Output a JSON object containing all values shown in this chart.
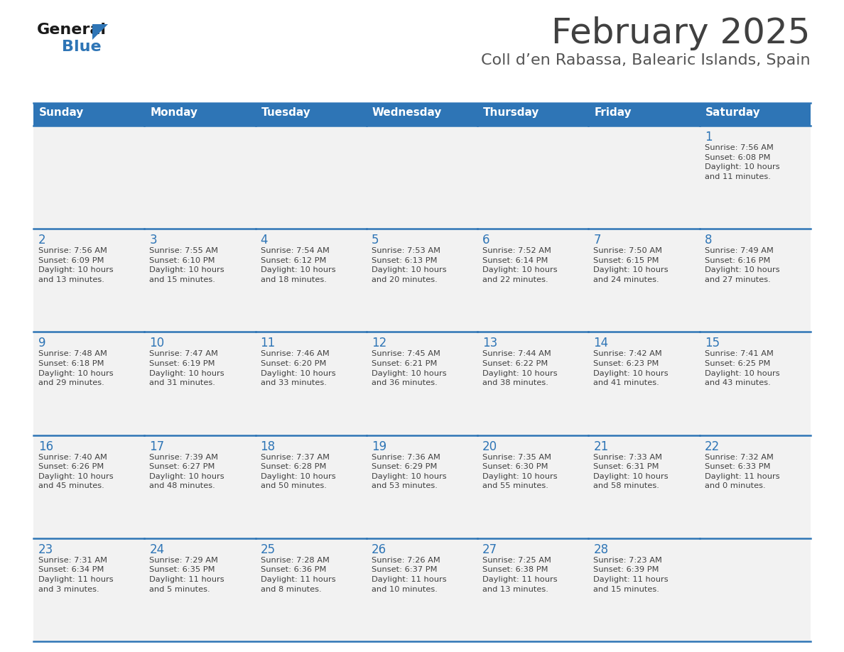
{
  "title": "February 2025",
  "subtitle": "Coll d’en Rabassa, Balearic Islands, Spain",
  "header_bg": "#2E75B6",
  "header_text": "#FFFFFF",
  "cell_bg": "#F2F2F2",
  "day_number_color": "#2E75B6",
  "cell_text_color": "#404040",
  "divider_color": "#2E75B6",
  "outer_border_color": "#2E75B6",
  "days_of_week": [
    "Sunday",
    "Monday",
    "Tuesday",
    "Wednesday",
    "Thursday",
    "Friday",
    "Saturday"
  ],
  "calendar_data": [
    [
      {
        "day": null,
        "info": null
      },
      {
        "day": null,
        "info": null
      },
      {
        "day": null,
        "info": null
      },
      {
        "day": null,
        "info": null
      },
      {
        "day": null,
        "info": null
      },
      {
        "day": null,
        "info": null
      },
      {
        "day": 1,
        "info": "Sunrise: 7:56 AM\nSunset: 6:08 PM\nDaylight: 10 hours\nand 11 minutes."
      }
    ],
    [
      {
        "day": 2,
        "info": "Sunrise: 7:56 AM\nSunset: 6:09 PM\nDaylight: 10 hours\nand 13 minutes."
      },
      {
        "day": 3,
        "info": "Sunrise: 7:55 AM\nSunset: 6:10 PM\nDaylight: 10 hours\nand 15 minutes."
      },
      {
        "day": 4,
        "info": "Sunrise: 7:54 AM\nSunset: 6:12 PM\nDaylight: 10 hours\nand 18 minutes."
      },
      {
        "day": 5,
        "info": "Sunrise: 7:53 AM\nSunset: 6:13 PM\nDaylight: 10 hours\nand 20 minutes."
      },
      {
        "day": 6,
        "info": "Sunrise: 7:52 AM\nSunset: 6:14 PM\nDaylight: 10 hours\nand 22 minutes."
      },
      {
        "day": 7,
        "info": "Sunrise: 7:50 AM\nSunset: 6:15 PM\nDaylight: 10 hours\nand 24 minutes."
      },
      {
        "day": 8,
        "info": "Sunrise: 7:49 AM\nSunset: 6:16 PM\nDaylight: 10 hours\nand 27 minutes."
      }
    ],
    [
      {
        "day": 9,
        "info": "Sunrise: 7:48 AM\nSunset: 6:18 PM\nDaylight: 10 hours\nand 29 minutes."
      },
      {
        "day": 10,
        "info": "Sunrise: 7:47 AM\nSunset: 6:19 PM\nDaylight: 10 hours\nand 31 minutes."
      },
      {
        "day": 11,
        "info": "Sunrise: 7:46 AM\nSunset: 6:20 PM\nDaylight: 10 hours\nand 33 minutes."
      },
      {
        "day": 12,
        "info": "Sunrise: 7:45 AM\nSunset: 6:21 PM\nDaylight: 10 hours\nand 36 minutes."
      },
      {
        "day": 13,
        "info": "Sunrise: 7:44 AM\nSunset: 6:22 PM\nDaylight: 10 hours\nand 38 minutes."
      },
      {
        "day": 14,
        "info": "Sunrise: 7:42 AM\nSunset: 6:23 PM\nDaylight: 10 hours\nand 41 minutes."
      },
      {
        "day": 15,
        "info": "Sunrise: 7:41 AM\nSunset: 6:25 PM\nDaylight: 10 hours\nand 43 minutes."
      }
    ],
    [
      {
        "day": 16,
        "info": "Sunrise: 7:40 AM\nSunset: 6:26 PM\nDaylight: 10 hours\nand 45 minutes."
      },
      {
        "day": 17,
        "info": "Sunrise: 7:39 AM\nSunset: 6:27 PM\nDaylight: 10 hours\nand 48 minutes."
      },
      {
        "day": 18,
        "info": "Sunrise: 7:37 AM\nSunset: 6:28 PM\nDaylight: 10 hours\nand 50 minutes."
      },
      {
        "day": 19,
        "info": "Sunrise: 7:36 AM\nSunset: 6:29 PM\nDaylight: 10 hours\nand 53 minutes."
      },
      {
        "day": 20,
        "info": "Sunrise: 7:35 AM\nSunset: 6:30 PM\nDaylight: 10 hours\nand 55 minutes."
      },
      {
        "day": 21,
        "info": "Sunrise: 7:33 AM\nSunset: 6:31 PM\nDaylight: 10 hours\nand 58 minutes."
      },
      {
        "day": 22,
        "info": "Sunrise: 7:32 AM\nSunset: 6:33 PM\nDaylight: 11 hours\nand 0 minutes."
      }
    ],
    [
      {
        "day": 23,
        "info": "Sunrise: 7:31 AM\nSunset: 6:34 PM\nDaylight: 11 hours\nand 3 minutes."
      },
      {
        "day": 24,
        "info": "Sunrise: 7:29 AM\nSunset: 6:35 PM\nDaylight: 11 hours\nand 5 minutes."
      },
      {
        "day": 25,
        "info": "Sunrise: 7:28 AM\nSunset: 6:36 PM\nDaylight: 11 hours\nand 8 minutes."
      },
      {
        "day": 26,
        "info": "Sunrise: 7:26 AM\nSunset: 6:37 PM\nDaylight: 11 hours\nand 10 minutes."
      },
      {
        "day": 27,
        "info": "Sunrise: 7:25 AM\nSunset: 6:38 PM\nDaylight: 11 hours\nand 13 minutes."
      },
      {
        "day": 28,
        "info": "Sunrise: 7:23 AM\nSunset: 6:39 PM\nDaylight: 11 hours\nand 15 minutes."
      },
      {
        "day": null,
        "info": null
      }
    ]
  ],
  "logo_color_general": "#1a1a1a",
  "logo_color_blue": "#2E75B6",
  "title_color": "#404040",
  "subtitle_color": "#555555",
  "fig_width": 11.88,
  "fig_height": 9.18,
  "dpi": 100
}
